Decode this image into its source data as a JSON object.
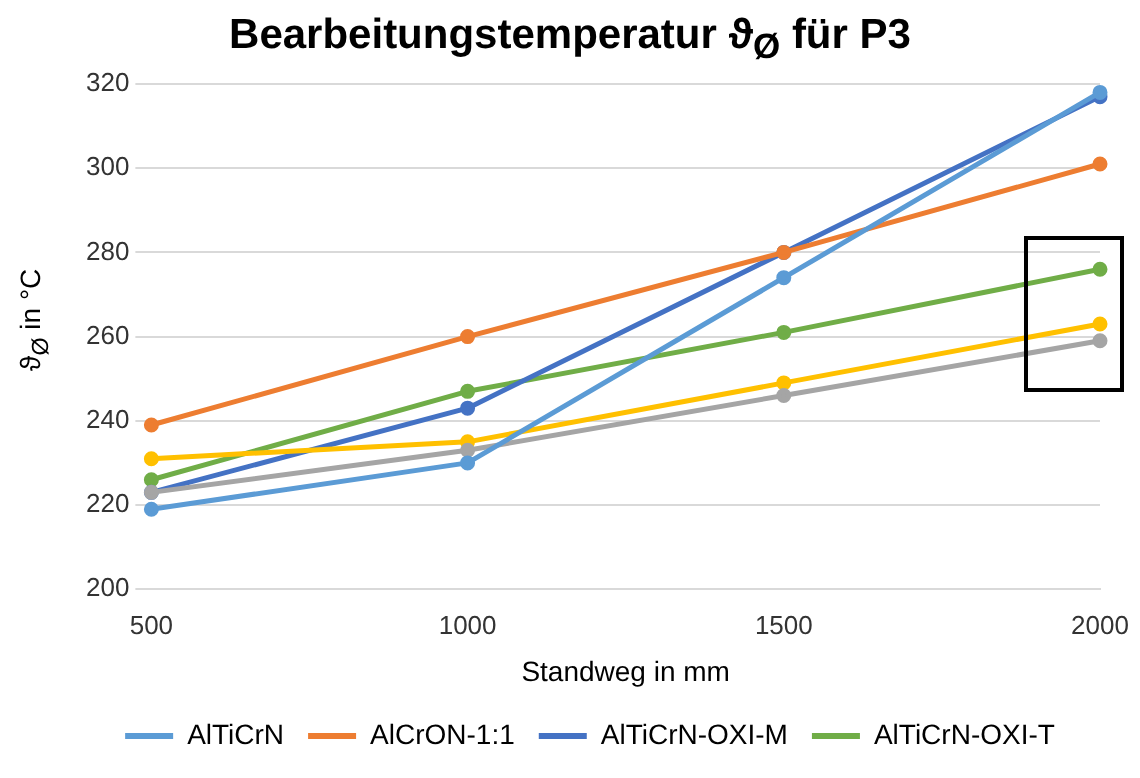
{
  "chart_data": {
    "type": "line",
    "title": "Bearbeitungstemperatur ϑ$_{Ø}$ für P3",
    "xlabel": "Standweg in mm",
    "ylabel": "ϑ$_{Ø}$ in °C",
    "categories": [
      "500",
      "1000",
      "1500",
      "2000"
    ],
    "series": [
      {
        "name": "AlTiCrN",
        "color": "#5b9bd5",
        "values": [
          219,
          230,
          274,
          318
        ]
      },
      {
        "name": "AlCrON-1:1",
        "color": "#ed7d31",
        "values": [
          239,
          260,
          280,
          301
        ]
      },
      {
        "color": "#a5a5a5",
        "values": [
          223,
          233,
          246,
          259
        ]
      },
      {
        "color": "#ffc000",
        "values": [
          231,
          235,
          249,
          263
        ]
      },
      {
        "name": "AlTiCrN-OXI-M",
        "color": "#4472c4",
        "values": [
          223,
          243,
          280,
          317
        ]
      },
      {
        "name": "AlTiCrN-OXI-T",
        "color": "#70ad47",
        "values": [
          226,
          247,
          261,
          276
        ]
      }
    ],
    "ylim": [
      200,
      320
    ],
    "yticks": [
      200,
      220,
      240,
      260,
      280,
      300,
      320
    ],
    "grid": "y",
    "legend": "bottom",
    "marker": "circle",
    "line_style": "solid"
  }
}
